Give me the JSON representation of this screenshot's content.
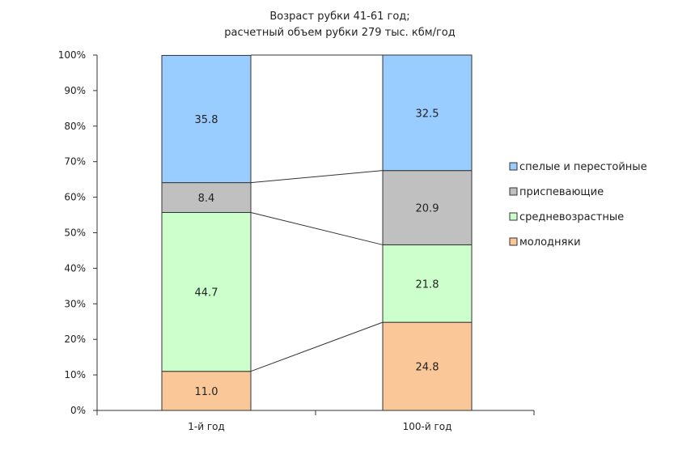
{
  "chart_data": {
    "type": "bar",
    "stacked": true,
    "percent_stacked": true,
    "title": [
      "Возраст рубки 41-61 год;",
      "расчетный объем рубки 279 тыс. кбм/год"
    ],
    "categories": [
      "1-й год",
      "100-й год"
    ],
    "y_ticks": [
      "0%",
      "10%",
      "20%",
      "30%",
      "40%",
      "50%",
      "60%",
      "70%",
      "80%",
      "90%",
      "100%"
    ],
    "ylim": [
      0,
      100
    ],
    "series": [
      {
        "name": "молодняки",
        "values": [
          11.0,
          24.8
        ],
        "labels": [
          "11.0",
          "24.8"
        ],
        "color": "#fac898"
      },
      {
        "name": "средневозрастные",
        "values": [
          44.7,
          21.8
        ],
        "labels": [
          "44.7",
          "21.8"
        ],
        "color": "#ccffcc"
      },
      {
        "name": "приспевающие",
        "values": [
          8.4,
          20.9
        ],
        "labels": [
          "8.4",
          "20.9"
        ],
        "color": "#c0c0c0"
      },
      {
        "name": "спелые и перестойные",
        "values": [
          35.8,
          32.5
        ],
        "labels": [
          "35.8",
          "32.5"
        ],
        "color": "#99ccff"
      }
    ],
    "legend_order": [
      3,
      2,
      1,
      0
    ],
    "legend_position": "right",
    "series_lines": true,
    "grid": false
  }
}
